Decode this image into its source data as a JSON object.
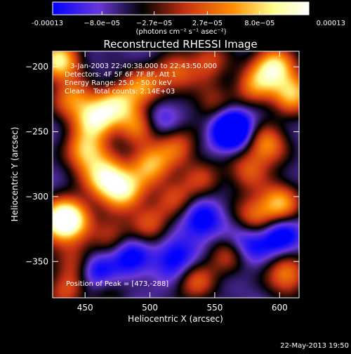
{
  "chart_data": {
    "type": "heatmap",
    "title": "Reconstructed RHESSI Image",
    "xlabel": "Heliocentric X (arcsec)",
    "ylabel": "Heliocentric Y (arcsec)",
    "xlim": [
      425,
      615
    ],
    "ylim": [
      -378,
      -188
    ],
    "x_ticks": [
      450,
      500,
      550,
      600
    ],
    "y_ticks": [
      -200,
      -250,
      -300,
      -350
    ],
    "colorbar": {
      "range": [
        -0.00013,
        0.00013
      ],
      "tick_values": [
        -0.00013,
        -8e-05,
        -2.7e-05,
        2.7e-05,
        8e-05,
        0.00013
      ],
      "tick_labels": [
        "-0.00013",
        "−8.0e−05",
        "−2.7e−05",
        "2.7e−05",
        "8.0e−05",
        "0.00013"
      ],
      "unit_label": "(photons cm⁻² s⁻¹ asec⁻²)",
      "colors": [
        "#0000ff",
        "#6a38d8",
        "#000000",
        "#c83214",
        "#ff8c00",
        "#ffff90",
        "#ffffff"
      ]
    },
    "annotations": [
      "3-Jan-2003 22:40:38.000 to 22:43:50.000",
      "Detectors: 4F 5F 6F 7F 8F, Att 1",
      "Energy Range: 25.0 - 50.0 keV",
      "Clean    Total counts: 2.14E+03"
    ],
    "peak_label": "Position of Peak = [473,-288]",
    "peak": [
      473,
      -288
    ],
    "sources": [
      {
        "x": 430,
        "y": -195,
        "v": 1.0
      },
      {
        "x": 440,
        "y": -225,
        "v": 0.65
      },
      {
        "x": 458,
        "y": -240,
        "v": 1.0
      },
      {
        "x": 475,
        "y": -228,
        "v": 0.75
      },
      {
        "x": 495,
        "y": -215,
        "v": 0.65
      },
      {
        "x": 520,
        "y": -205,
        "v": 0.55
      },
      {
        "x": 545,
        "y": -195,
        "v": 0.5
      },
      {
        "x": 450,
        "y": -265,
        "v": 0.85
      },
      {
        "x": 465,
        "y": -285,
        "v": 1.0
      },
      {
        "x": 480,
        "y": -295,
        "v": 0.9
      },
      {
        "x": 500,
        "y": -275,
        "v": 0.8
      },
      {
        "x": 520,
        "y": -260,
        "v": 0.55
      },
      {
        "x": 490,
        "y": -245,
        "v": 0.6
      },
      {
        "x": 440,
        "y": -315,
        "v": 0.75
      },
      {
        "x": 430,
        "y": -320,
        "v": 1.0
      },
      {
        "x": 445,
        "y": -350,
        "v": 0.55
      },
      {
        "x": 470,
        "y": -330,
        "v": 0.5
      },
      {
        "x": 435,
        "y": -372,
        "v": 0.5
      },
      {
        "x": 465,
        "y": -368,
        "v": 0.4
      },
      {
        "x": 500,
        "y": -320,
        "v": 0.5
      },
      {
        "x": 520,
        "y": -300,
        "v": 0.45
      },
      {
        "x": 540,
        "y": -285,
        "v": 0.4
      },
      {
        "x": 535,
        "y": -365,
        "v": 0.55
      },
      {
        "x": 560,
        "y": -345,
        "v": 0.45
      },
      {
        "x": 580,
        "y": -315,
        "v": 0.6
      },
      {
        "x": 600,
        "y": -305,
        "v": 0.8
      },
      {
        "x": 605,
        "y": -360,
        "v": 0.7
      },
      {
        "x": 595,
        "y": -200,
        "v": 1.0
      },
      {
        "x": 610,
        "y": -220,
        "v": 0.85
      },
      {
        "x": 580,
        "y": -215,
        "v": 0.6
      },
      {
        "x": 590,
        "y": -260,
        "v": 0.7
      },
      {
        "x": 575,
        "y": -280,
        "v": 0.5
      },
      {
        "x": 548,
        "y": -228,
        "v": 0.4
      },
      {
        "x": 563,
        "y": -248,
        "v": -0.95
      },
      {
        "x": 540,
        "y": -318,
        "v": -0.5
      },
      {
        "x": 520,
        "y": -348,
        "v": -0.5
      },
      {
        "x": 483,
        "y": -345,
        "v": -0.5
      },
      {
        "x": 458,
        "y": -358,
        "v": -0.75
      },
      {
        "x": 575,
        "y": -335,
        "v": -0.45
      },
      {
        "x": 508,
        "y": -240,
        "v": -0.35
      },
      {
        "x": 600,
        "y": -330,
        "v": -0.55
      }
    ]
  },
  "footer": {
    "date": "22-May-2013 19:50"
  }
}
